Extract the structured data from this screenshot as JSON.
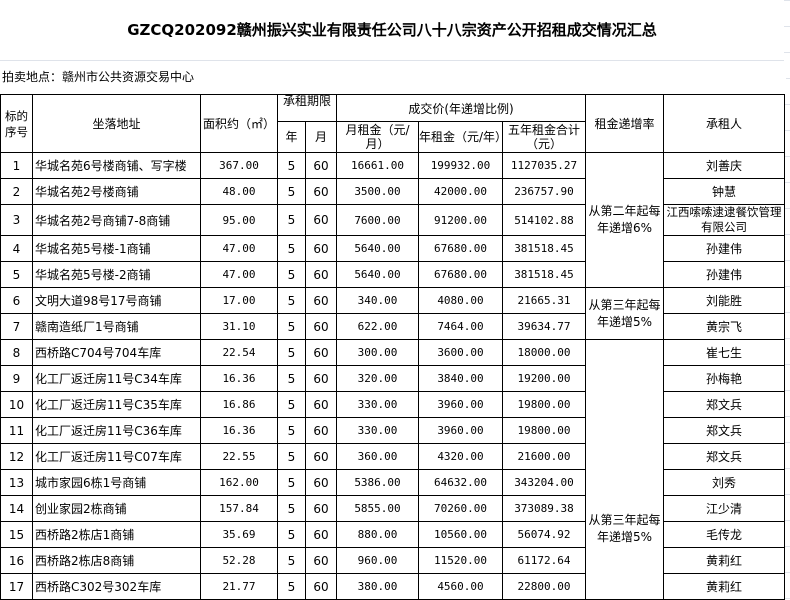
{
  "title": "GZCQ202092赣州振兴实业有限责任公司八十八宗资产公开招租成交情况汇总",
  "location": "拍卖地点：赣州市公共资源交易中心",
  "headers": {
    "seq": "标的序号",
    "address": "坐落地址",
    "area": "面积约（㎡）",
    "term": "承租期限",
    "year": "年",
    "month": "月",
    "price": "成交价(年递增比例)",
    "monthly": "月租金（元/月）",
    "yearly": "年租金（元/年）",
    "five": "五年租金合计（元）",
    "rate": "租金递增率",
    "tenant": "承租人"
  },
  "rates": [
    "从第二年起每年递增6%",
    "从第三年起每年递增5%",
    "从第三年起每年递增5%"
  ],
  "rows": [
    {
      "n": "1",
      "addr": "华城名苑6号楼商铺、写字楼",
      "area": "367.00",
      "y": "5",
      "m": "60",
      "mon": "16661.00",
      "yr": "199932.00",
      "five": "1127035.27",
      "tenant": "刘善庆"
    },
    {
      "n": "2",
      "addr": "华城名苑2号楼商铺",
      "area": "48.00",
      "y": "5",
      "m": "60",
      "mon": "3500.00",
      "yr": "42000.00",
      "five": "236757.90",
      "tenant": "钟慧"
    },
    {
      "n": "3",
      "addr": "华城名苑2号商铺7-8商铺",
      "area": "95.00",
      "y": "5",
      "m": "60",
      "mon": "7600.00",
      "yr": "91200.00",
      "five": "514102.88",
      "tenant": "江西嗦嗦逮逮餐饮管理有限公司"
    },
    {
      "n": "4",
      "addr": "华城名苑5号楼-1商铺",
      "area": "47.00",
      "y": "5",
      "m": "60",
      "mon": "5640.00",
      "yr": "67680.00",
      "five": "381518.45",
      "tenant": "孙建伟"
    },
    {
      "n": "5",
      "addr": "华城名苑5号楼-2商铺",
      "area": "47.00",
      "y": "5",
      "m": "60",
      "mon": "5640.00",
      "yr": "67680.00",
      "five": "381518.45",
      "tenant": "孙建伟"
    },
    {
      "n": "6",
      "addr": "文明大道98号17号商铺",
      "area": "17.00",
      "y": "5",
      "m": "60",
      "mon": "340.00",
      "yr": "4080.00",
      "five": "21665.31",
      "tenant": "刘能胜"
    },
    {
      "n": "7",
      "addr": "赣南造纸厂1号商铺",
      "area": "31.10",
      "y": "5",
      "m": "60",
      "mon": "622.00",
      "yr": "7464.00",
      "five": "39634.77",
      "tenant": "黄宗飞"
    },
    {
      "n": "8",
      "addr": "西桥路C704号704车库",
      "area": "22.54",
      "y": "5",
      "m": "60",
      "mon": "300.00",
      "yr": "3600.00",
      "five": "18000.00",
      "tenant": "崔七生"
    },
    {
      "n": "9",
      "addr": "化工厂返迁房11号C34车库",
      "area": "16.36",
      "y": "5",
      "m": "60",
      "mon": "320.00",
      "yr": "3840.00",
      "five": "19200.00",
      "tenant": "孙梅艳"
    },
    {
      "n": "10",
      "addr": "化工厂返迁房11号C35车库",
      "area": "16.86",
      "y": "5",
      "m": "60",
      "mon": "330.00",
      "yr": "3960.00",
      "five": "19800.00",
      "tenant": "郑文兵"
    },
    {
      "n": "11",
      "addr": "化工厂返迁房11号C36车库",
      "area": "16.36",
      "y": "5",
      "m": "60",
      "mon": "330.00",
      "yr": "3960.00",
      "five": "19800.00",
      "tenant": "郑文兵"
    },
    {
      "n": "12",
      "addr": "化工厂返迁房11号C07车库",
      "area": "22.55",
      "y": "5",
      "m": "60",
      "mon": "360.00",
      "yr": "4320.00",
      "five": "21600.00",
      "tenant": "郑文兵"
    },
    {
      "n": "13",
      "addr": "城市家园6栋1号商铺",
      "area": "162.00",
      "y": "5",
      "m": "60",
      "mon": "5386.00",
      "yr": "64632.00",
      "five": "343204.00",
      "tenant": "刘秀"
    },
    {
      "n": "14",
      "addr": "创业家园2栋商铺",
      "area": "157.84",
      "y": "5",
      "m": "60",
      "mon": "5855.00",
      "yr": "70260.00",
      "five": "373089.38",
      "tenant": "江少清"
    },
    {
      "n": "15",
      "addr": "西桥路2栋店1商铺",
      "area": "35.69",
      "y": "5",
      "m": "60",
      "mon": "880.00",
      "yr": "10560.00",
      "five": "56074.92",
      "tenant": "毛传龙"
    },
    {
      "n": "16",
      "addr": "西桥路2栋店8商铺",
      "area": "52.28",
      "y": "5",
      "m": "60",
      "mon": "960.00",
      "yr": "11520.00",
      "five": "61172.64",
      "tenant": "黄莉红"
    },
    {
      "n": "17",
      "addr": "西桥路C302号302车库",
      "area": "21.77",
      "y": "5",
      "m": "60",
      "mon": "380.00",
      "yr": "4560.00",
      "five": "22800.00",
      "tenant": "黄莉红"
    }
  ]
}
